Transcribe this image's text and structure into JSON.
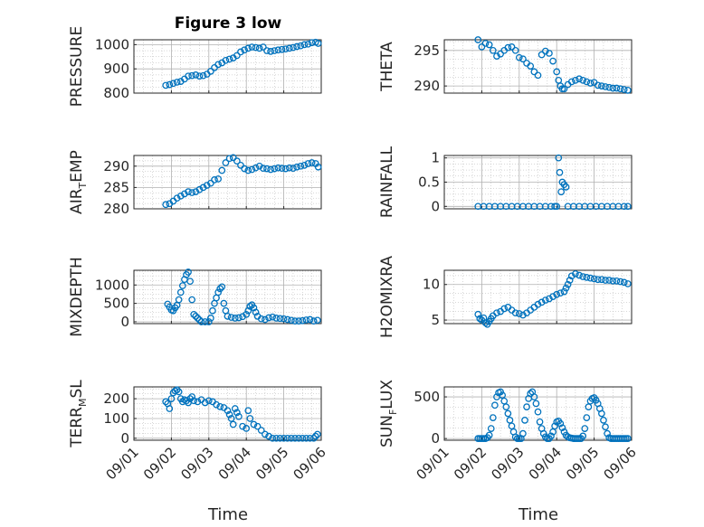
{
  "figure_title": "Figure 3 low",
  "x_axis_label": "Time",
  "x_tick_labels": [
    "09/01",
    "09/02",
    "09/03",
    "09/04",
    "09/05",
    "09/06"
  ],
  "colors": {
    "marker": "#0072BD",
    "axes": "#262626",
    "grid": "#b0b0b0"
  },
  "chart_data": [
    {
      "type": "scatter",
      "panel": "pressure",
      "ylabel": "PRESSURE",
      "ylim": [
        800,
        1020
      ],
      "yticks": [
        800,
        900,
        1000
      ],
      "xlim": [
        0,
        5
      ],
      "grid": true,
      "x": [
        0.85,
        0.95,
        1.05,
        1.15,
        1.25,
        1.35,
        1.45,
        1.55,
        1.65,
        1.75,
        1.85,
        1.95,
        2.05,
        2.15,
        2.25,
        2.35,
        2.45,
        2.55,
        2.65,
        2.75,
        2.85,
        2.95,
        3.05,
        3.15,
        3.25,
        3.35,
        3.45,
        3.55,
        3.65,
        3.75,
        3.85,
        3.95,
        4.05,
        4.15,
        4.25,
        4.35,
        4.45,
        4.55,
        4.65,
        4.75,
        4.85,
        4.92
      ],
      "y": [
        832,
        835,
        840,
        845,
        848,
        858,
        870,
        872,
        875,
        870,
        872,
        878,
        890,
        905,
        918,
        925,
        935,
        940,
        945,
        955,
        970,
        978,
        985,
        990,
        988,
        985,
        990,
        975,
        972,
        975,
        978,
        980,
        982,
        985,
        988,
        992,
        995,
        1000,
        1002,
        1008,
        1010,
        1005
      ]
    },
    {
      "type": "scatter",
      "panel": "theta",
      "ylabel": "THETA",
      "ylim": [
        289,
        296.5
      ],
      "yticks": [
        290,
        295
      ],
      "xlim": [
        0,
        5
      ],
      "grid": true,
      "x": [
        0.9,
        1.0,
        1.1,
        1.2,
        1.3,
        1.4,
        1.5,
        1.6,
        1.7,
        1.8,
        1.9,
        2.0,
        2.1,
        2.2,
        2.3,
        2.4,
        2.5,
        2.6,
        2.7,
        2.8,
        2.9,
        3.0,
        3.05,
        3.1,
        3.15,
        3.2,
        3.3,
        3.4,
        3.5,
        3.6,
        3.7,
        3.8,
        3.9,
        4.0,
        4.1,
        4.2,
        4.3,
        4.4,
        4.5,
        4.6,
        4.7,
        4.8,
        4.9
      ],
      "y": [
        296.5,
        295.5,
        296,
        295.8,
        295,
        294.2,
        294.5,
        295,
        295.4,
        295.5,
        295,
        294,
        293.8,
        293.2,
        292.8,
        292,
        291.5,
        294.4,
        294.9,
        294.6,
        293.5,
        292,
        290.8,
        290,
        289.6,
        289.6,
        290.2,
        290.6,
        290.8,
        291,
        290.8,
        290.6,
        290.4,
        290.5,
        290.1,
        290,
        289.9,
        289.8,
        289.7,
        289.7,
        289.6,
        289.5,
        289.4
      ]
    },
    {
      "type": "scatter",
      "panel": "air_temp",
      "ylabel": "AIR",
      "ylabel_subscript": "T",
      "ylabel_suffix": "EMP",
      "ylim": [
        280,
        292.5
      ],
      "yticks": [
        280,
        285,
        290
      ],
      "xlim": [
        0,
        5
      ],
      "grid": true,
      "x": [
        0.85,
        0.95,
        1.05,
        1.15,
        1.25,
        1.35,
        1.45,
        1.55,
        1.65,
        1.75,
        1.85,
        1.95,
        2.05,
        2.15,
        2.25,
        2.35,
        2.45,
        2.55,
        2.65,
        2.75,
        2.85,
        2.95,
        3.05,
        3.15,
        3.25,
        3.35,
        3.45,
        3.55,
        3.65,
        3.75,
        3.85,
        3.95,
        4.05,
        4.15,
        4.25,
        4.35,
        4.45,
        4.55,
        4.65,
        4.75,
        4.85,
        4.92
      ],
      "y": [
        281,
        281.2,
        281.8,
        282.5,
        283,
        283.5,
        284,
        283.8,
        284,
        284.5,
        285,
        285.5,
        286,
        286.8,
        287,
        289,
        290.8,
        291.8,
        292,
        291.2,
        290.2,
        289.4,
        289,
        289.2,
        289.6,
        290,
        289.5,
        289.4,
        289.2,
        289.4,
        289.6,
        289.5,
        289.4,
        289.6,
        289.5,
        289.8,
        290,
        290.2,
        290.6,
        290.8,
        290.6,
        289.8
      ]
    },
    {
      "type": "scatter",
      "panel": "rainfall",
      "ylabel": "RAINFALL",
      "ylim": [
        -0.05,
        1.05
      ],
      "yticks": [
        0,
        0.5,
        1
      ],
      "xlim": [
        0,
        5
      ],
      "grid": true,
      "x": [
        0.9,
        1.05,
        1.2,
        1.35,
        1.5,
        1.65,
        1.8,
        1.95,
        2.1,
        2.25,
        2.4,
        2.55,
        2.7,
        2.85,
        2.95,
        3.0,
        3.05,
        3.08,
        3.12,
        3.15,
        3.2,
        3.25,
        3.3,
        3.45,
        3.6,
        3.75,
        3.9,
        4.05,
        4.2,
        4.35,
        4.5,
        4.65,
        4.8,
        4.9
      ],
      "y": [
        0,
        0,
        0,
        0,
        0,
        0,
        0,
        0,
        0,
        0,
        0,
        0,
        0,
        0,
        0,
        0,
        1.0,
        0.7,
        0.3,
        0.5,
        0.45,
        0.4,
        0,
        0,
        0,
        0,
        0,
        0,
        0,
        0,
        0,
        0,
        0,
        0
      ]
    },
    {
      "type": "scatter",
      "panel": "mixdepth",
      "ylabel": "MIXDEPTH",
      "ylim": [
        -50,
        1400
      ],
      "yticks": [
        0,
        500,
        1000
      ],
      "xlim": [
        0,
        5
      ],
      "grid": true,
      "x": [
        0.9,
        0.95,
        1.0,
        1.05,
        1.1,
        1.15,
        1.2,
        1.25,
        1.3,
        1.35,
        1.4,
        1.45,
        1.5,
        1.55,
        1.6,
        1.65,
        1.7,
        1.75,
        1.8,
        1.9,
        2.0,
        2.05,
        2.1,
        2.15,
        2.2,
        2.25,
        2.3,
        2.35,
        2.4,
        2.45,
        2.5,
        2.6,
        2.7,
        2.8,
        2.9,
        3.0,
        3.05,
        3.1,
        3.15,
        3.2,
        3.25,
        3.3,
        3.4,
        3.5,
        3.6,
        3.7,
        3.8,
        3.9,
        4.0,
        4.1,
        4.2,
        4.3,
        4.4,
        4.5,
        4.6,
        4.7,
        4.8,
        4.9
      ],
      "y": [
        480,
        400,
        320,
        300,
        380,
        450,
        600,
        800,
        980,
        1150,
        1280,
        1350,
        1100,
        600,
        200,
        150,
        100,
        50,
        0,
        0,
        0,
        100,
        300,
        500,
        650,
        800,
        900,
        950,
        500,
        300,
        150,
        120,
        100,
        110,
        140,
        200,
        300,
        420,
        460,
        380,
        260,
        150,
        80,
        60,
        110,
        130,
        100,
        90,
        80,
        60,
        40,
        20,
        20,
        30,
        50,
        60,
        20,
        40
      ]
    },
    {
      "type": "scatter",
      "panel": "h2omixra",
      "ylabel": "H2OMIXRA",
      "ylim": [
        4.5,
        12
      ],
      "yticks": [
        5,
        10
      ],
      "xlim": [
        0,
        5
      ],
      "grid": true,
      "x": [
        0.9,
        0.95,
        1.0,
        1.05,
        1.1,
        1.15,
        1.2,
        1.25,
        1.3,
        1.4,
        1.5,
        1.6,
        1.7,
        1.8,
        1.9,
        2.0,
        2.1,
        2.2,
        2.3,
        2.4,
        2.5,
        2.6,
        2.7,
        2.8,
        2.9,
        3.0,
        3.1,
        3.2,
        3.25,
        3.3,
        3.35,
        3.4,
        3.5,
        3.6,
        3.7,
        3.8,
        3.9,
        4.0,
        4.1,
        4.2,
        4.3,
        4.4,
        4.5,
        4.6,
        4.7,
        4.8,
        4.9
      ],
      "y": [
        5.8,
        5.2,
        5.0,
        5.3,
        4.6,
        4.4,
        4.8,
        5.2,
        5.6,
        6.0,
        6.2,
        6.6,
        6.8,
        6.4,
        6.0,
        5.9,
        5.7,
        6.0,
        6.4,
        6.8,
        7.2,
        7.5,
        7.8,
        8.0,
        8.3,
        8.6,
        8.8,
        9.0,
        9.5,
        10.0,
        10.6,
        11.2,
        11.5,
        11.3,
        11.1,
        11.0,
        10.9,
        10.8,
        10.7,
        10.7,
        10.6,
        10.6,
        10.5,
        10.5,
        10.4,
        10.3,
        10.1
      ]
    },
    {
      "type": "scatter",
      "panel": "terr_msl",
      "ylabel": "TERR",
      "ylabel_subscript": "M",
      "ylabel_suffix": "SL",
      "ylim": [
        -10,
        260
      ],
      "yticks": [
        0,
        100,
        200
      ],
      "xlim": [
        0,
        5
      ],
      "grid": true,
      "x": [
        0.85,
        0.9,
        0.95,
        1.0,
        1.05,
        1.1,
        1.15,
        1.2,
        1.25,
        1.3,
        1.35,
        1.4,
        1.45,
        1.5,
        1.55,
        1.6,
        1.7,
        1.8,
        1.9,
        2.0,
        2.1,
        2.2,
        2.3,
        2.4,
        2.5,
        2.55,
        2.6,
        2.65,
        2.7,
        2.75,
        2.8,
        2.9,
        3.0,
        3.05,
        3.1,
        3.2,
        3.3,
        3.4,
        3.5,
        3.6,
        3.7,
        3.8,
        3.9,
        4.0,
        4.1,
        4.2,
        4.3,
        4.4,
        4.5,
        4.6,
        4.7,
        4.8,
        4.85,
        4.9
      ],
      "y": [
        185,
        175,
        150,
        200,
        230,
        240,
        245,
        235,
        200,
        185,
        195,
        190,
        180,
        200,
        210,
        190,
        185,
        195,
        180,
        190,
        185,
        170,
        160,
        155,
        140,
        120,
        100,
        70,
        150,
        130,
        110,
        60,
        50,
        140,
        100,
        70,
        60,
        40,
        20,
        10,
        0,
        0,
        0,
        0,
        0,
        0,
        0,
        0,
        0,
        0,
        0,
        0,
        10,
        20
      ]
    },
    {
      "type": "scatter",
      "panel": "sun_flux",
      "ylabel": "SUN",
      "ylabel_subscript": "F",
      "ylabel_suffix": "LUX",
      "ylim": [
        -20,
        620
      ],
      "yticks": [
        0,
        500
      ],
      "xlim": [
        0,
        5
      ],
      "grid": true,
      "x": [
        0.9,
        0.95,
        1.0,
        1.05,
        1.1,
        1.15,
        1.2,
        1.25,
        1.3,
        1.35,
        1.4,
        1.45,
        1.5,
        1.55,
        1.6,
        1.65,
        1.7,
        1.75,
        1.8,
        1.85,
        1.9,
        1.95,
        2.0,
        2.05,
        2.1,
        2.15,
        2.2,
        2.25,
        2.3,
        2.35,
        2.4,
        2.45,
        2.5,
        2.55,
        2.6,
        2.65,
        2.7,
        2.75,
        2.8,
        2.85,
        2.9,
        2.95,
        3.0,
        3.05,
        3.1,
        3.15,
        3.2,
        3.25,
        3.3,
        3.35,
        3.4,
        3.45,
        3.5,
        3.55,
        3.6,
        3.65,
        3.7,
        3.75,
        3.8,
        3.85,
        3.9,
        3.95,
        4.0,
        4.05,
        4.1,
        4.15,
        4.2,
        4.25,
        4.3,
        4.35,
        4.4,
        4.45,
        4.5,
        4.55,
        4.6,
        4.65,
        4.7,
        4.75,
        4.8,
        4.85,
        4.9
      ],
      "y": [
        0,
        0,
        0,
        0,
        0,
        10,
        40,
        120,
        250,
        400,
        500,
        550,
        560,
        520,
        450,
        380,
        300,
        220,
        150,
        80,
        20,
        0,
        0,
        0,
        60,
        220,
        380,
        480,
        540,
        560,
        500,
        420,
        320,
        200,
        120,
        60,
        20,
        0,
        0,
        30,
        80,
        150,
        200,
        210,
        180,
        130,
        80,
        40,
        20,
        10,
        5,
        0,
        0,
        0,
        0,
        0,
        30,
        120,
        250,
        380,
        450,
        480,
        490,
        460,
        420,
        360,
        300,
        220,
        140,
        60,
        10,
        0,
        0,
        0,
        0,
        0,
        0,
        0,
        0,
        0,
        0
      ]
    }
  ]
}
